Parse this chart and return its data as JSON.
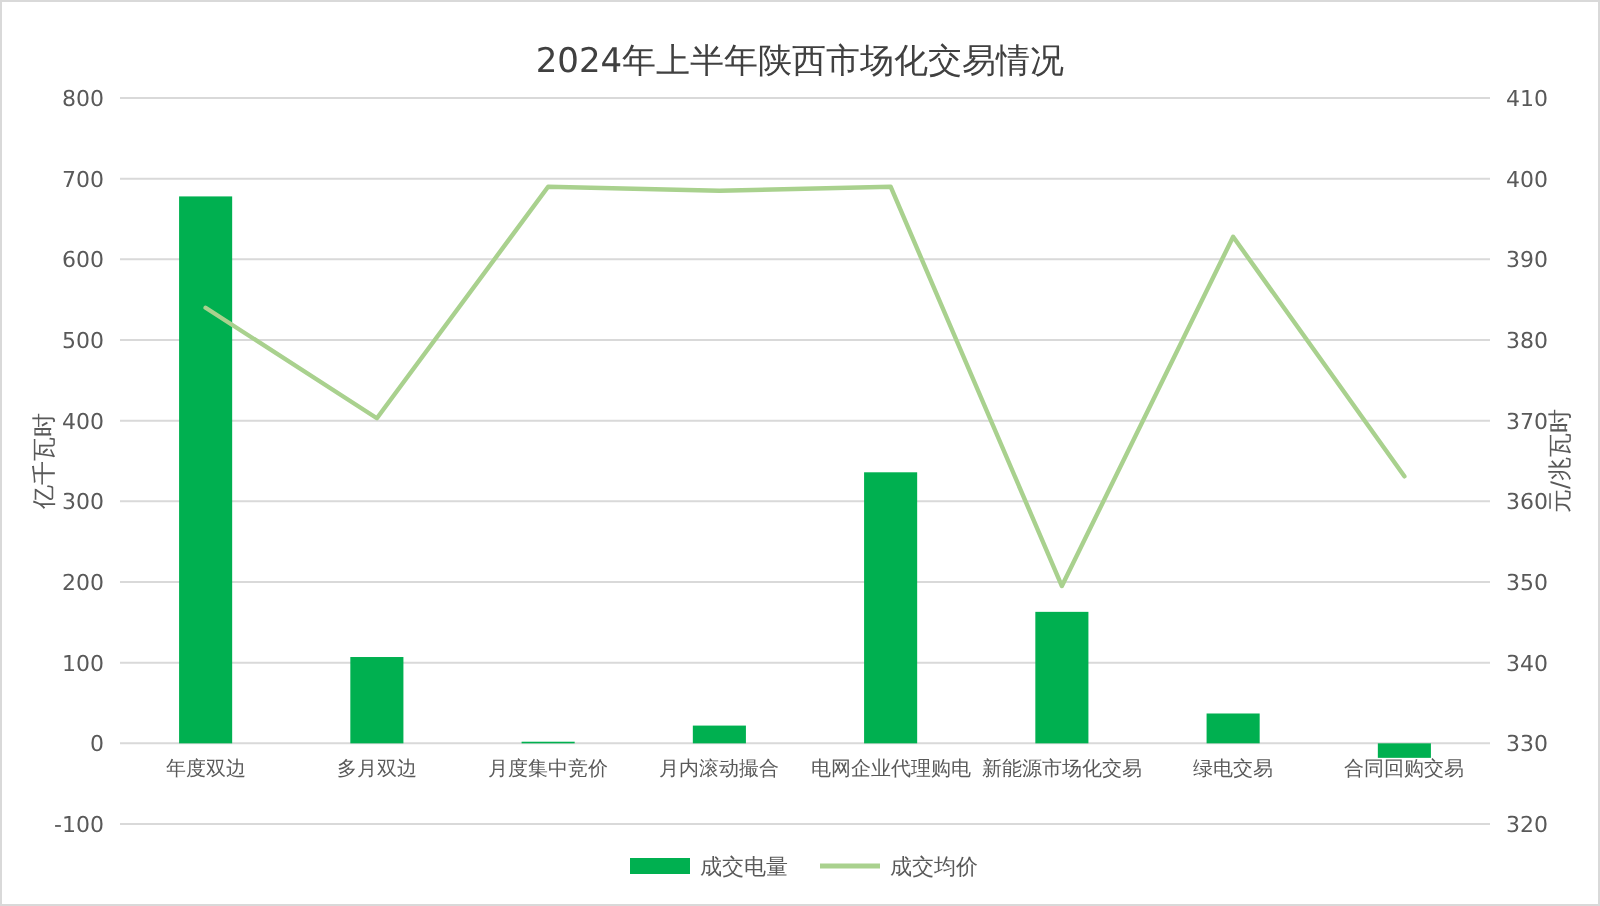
{
  "chart_data": {
    "type": "bar",
    "title": "2024年上半年陕西市场化交易情况",
    "categories": [
      "年度双边",
      "多月双边",
      "月度集中竞价",
      "月内滚动撮合",
      "电网企业代理购电",
      "新能源市场化交易",
      "绿电交易",
      "合同回购交易"
    ],
    "series": [
      {
        "name": "成交电量",
        "color": "#00b050",
        "values": [
          678,
          107,
          2,
          22,
          336,
          163,
          37,
          -18
        ]
      },
      {
        "name": "成交均价",
        "type": "line",
        "axis": "y2",
        "color": "#a9d18e",
        "values": [
          384,
          370.3,
          399,
          398.5,
          399,
          349.5,
          392.8,
          363.1
        ]
      }
    ],
    "ylabel": "亿千瓦时",
    "y2label": "元/兆瓦时",
    "ylim": [
      -100,
      800
    ],
    "yticks": [
      -100,
      0,
      100,
      200,
      300,
      400,
      500,
      600,
      700,
      800
    ],
    "y2lim": [
      320,
      410
    ],
    "y2ticks": [
      320,
      330,
      340,
      350,
      360,
      370,
      380,
      390,
      400,
      410
    ],
    "grid": "y",
    "legend": "bottom"
  }
}
